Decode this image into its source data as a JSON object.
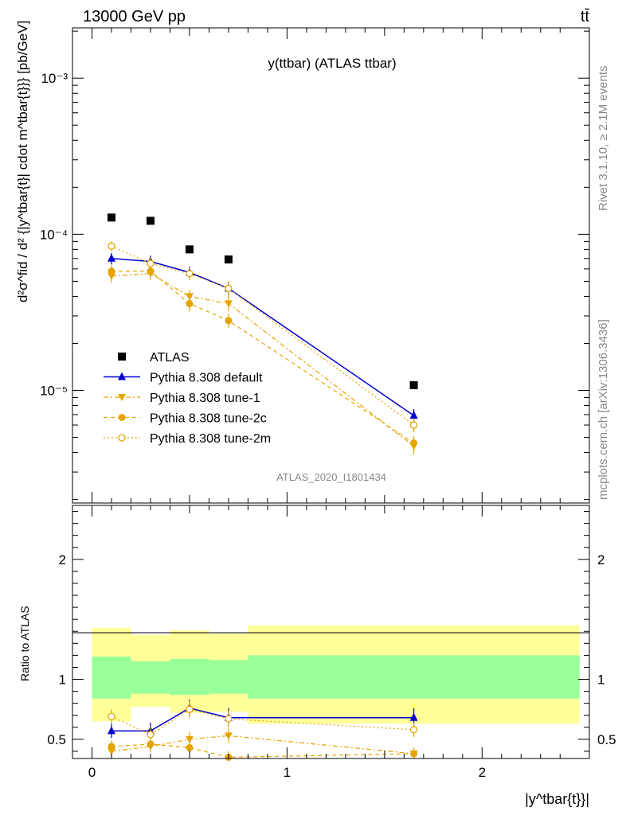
{
  "header": {
    "energy_label": "13000 GeV pp",
    "process_label": "tt̄"
  },
  "side_labels": {
    "rivet": "Rivet 3.1.10, ≥ 2.1M events",
    "mcplots": "mcplots.cern.ch [arXiv:1306.3436]"
  },
  "chart_data": [
    {
      "type": "scatter",
      "title": "y(ttbar) (ATLAS ttbar)",
      "watermark": "ATLAS_2020_I1801434",
      "ylabel": "d²σ^fid / d² {|y^tbar{t}| cdot m^tbar{t}}} [pb/GeV]",
      "yscale": "log",
      "ylim": [
        1.9e-06,
        0.0021
      ],
      "xlim": [
        -0.1,
        2.55
      ],
      "ytick_labels": [
        "10⁻⁵",
        "10⁻⁴",
        "10⁻³"
      ],
      "legend_position": "lower-left",
      "bins": [
        [
          0.0,
          0.2
        ],
        [
          0.2,
          0.4
        ],
        [
          0.4,
          0.6
        ],
        [
          0.6,
          0.8
        ],
        [
          0.8,
          2.5
        ]
      ],
      "x": [
        0.1,
        0.3,
        0.5,
        0.7,
        1.65
      ],
      "series": [
        {
          "name": "ATLAS",
          "color": "#000000",
          "marker": "square",
          "line": "none",
          "values": [
            0.000128,
            0.000122,
            8e-05,
            6.9e-05,
            1.08e-05
          ]
        },
        {
          "name": "Pythia 8.308 default",
          "color": "#0000cc",
          "marker": "triangle-up",
          "line": "solid",
          "values": [
            7e-05,
            6.7e-05,
            5.7e-05,
            4.5e-05,
            6.9e-06
          ],
          "errors": [
            6e-06,
            6e-06,
            5e-06,
            5e-06,
            7e-07
          ]
        },
        {
          "name": "Pythia 8.308 tune-1",
          "color": "#e6a400",
          "marker": "triangle-down",
          "line": "dashdot",
          "values": [
            5.4e-05,
            5.6e-05,
            4e-05,
            3.6e-05,
            4.4e-06
          ],
          "errors": [
            5e-06,
            5e-06,
            4e-06,
            4e-06,
            5e-07
          ]
        },
        {
          "name": "Pythia 8.308 tune-2c",
          "color": "#e6a400",
          "marker": "circle",
          "line": "dashed",
          "values": [
            5.8e-05,
            5.8e-05,
            3.6e-05,
            2.8e-05,
            4.6e-06
          ],
          "errors": [
            5e-06,
            5e-06,
            4e-06,
            3e-06,
            5e-07
          ]
        },
        {
          "name": "Pythia 8.308 tune-2m",
          "color": "#e6a400",
          "marker": "circle-open",
          "line": "dotted",
          "values": [
            8.4e-05,
            6.5e-05,
            5.6e-05,
            4.5e-05,
            6e-06
          ],
          "errors": [
            6e-06,
            6e-06,
            5e-06,
            5e-06,
            6e-07
          ]
        }
      ]
    },
    {
      "type": "scatter",
      "ylabel": "Ratio to ATLAS",
      "xlabel": "|y^tbar{t}}|",
      "ylim": [
        0.34,
        2.45
      ],
      "xlim": [
        -0.1,
        2.55
      ],
      "yticks": [
        0.5,
        1,
        2
      ],
      "ytick_labels": [
        "0.5",
        "1",
        "2"
      ],
      "xticks": [
        0,
        1,
        2
      ],
      "xtick_labels": [
        "0",
        "1",
        "2"
      ],
      "bins": [
        [
          0.0,
          0.2
        ],
        [
          0.2,
          0.4
        ],
        [
          0.4,
          0.6
        ],
        [
          0.6,
          0.8
        ],
        [
          0.8,
          2.5
        ]
      ],
      "band_inner": [
        [
          0.84,
          1.19
        ],
        [
          0.88,
          1.15
        ],
        [
          0.87,
          1.17
        ],
        [
          0.88,
          1.16
        ],
        [
          0.84,
          1.2
        ]
      ],
      "band_outer": [
        [
          0.65,
          1.43
        ],
        [
          0.77,
          1.37
        ],
        [
          0.72,
          1.41
        ],
        [
          0.73,
          1.38
        ],
        [
          0.63,
          1.45
        ]
      ],
      "band_inner_color": "#99ff99",
      "band_outer_color": "#ffff99",
      "x": [
        0.1,
        0.3,
        0.5,
        0.7,
        1.65
      ],
      "series": [
        {
          "name": "Pythia 8.308 default",
          "color": "#0000cc",
          "marker": "triangle-up",
          "line": "solid",
          "values": [
            0.57,
            0.57,
            0.76,
            0.68,
            0.68
          ],
          "errors": [
            0.06,
            0.07,
            0.07,
            0.08,
            0.08
          ]
        },
        {
          "name": "Pythia 8.308 tune-1",
          "color": "#e6a400",
          "marker": "triangle-down",
          "line": "dashdot",
          "values": [
            0.4,
            0.44,
            0.5,
            0.53,
            0.38
          ],
          "errors": [
            0.05,
            0.05,
            0.06,
            0.06,
            0.05
          ]
        },
        {
          "name": "Pythia 8.308 tune-2c",
          "color": "#e6a400",
          "marker": "circle",
          "line": "dashed",
          "values": [
            0.44,
            0.46,
            0.43,
            0.35,
            0.38
          ],
          "errors": [
            0.05,
            0.05,
            0.05,
            0.05,
            0.05
          ]
        },
        {
          "name": "Pythia 8.308 tune-2m",
          "color": "#e6a400",
          "marker": "circle-open",
          "line": "dotted",
          "values": [
            0.69,
            0.54,
            0.75,
            0.67,
            0.58
          ],
          "errors": [
            0.06,
            0.06,
            0.07,
            0.07,
            0.06
          ]
        }
      ]
    }
  ]
}
